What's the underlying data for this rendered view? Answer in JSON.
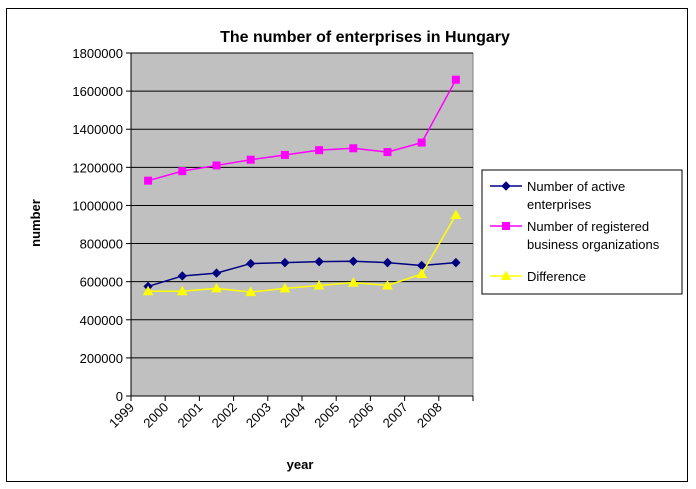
{
  "chart_data": {
    "type": "line",
    "title": "The number of enterprises in Hungary",
    "xlabel": "year",
    "ylabel": "number",
    "x_ticks": [
      "1999",
      "2000",
      "2001",
      "2002",
      "2003",
      "2004",
      "2005",
      "2006",
      "2007",
      "2008"
    ],
    "x": [
      "1999-2000",
      "2000-2001",
      "2001-2002",
      "2002-2003",
      "2003-2004",
      "2004-2005",
      "2005-2006",
      "2006-2007",
      "2007-2008",
      "2008-"
    ],
    "ylim": [
      0,
      1800000
    ],
    "y_ticks": [
      "0",
      "200000",
      "400000",
      "600000",
      "800000",
      "1000000",
      "1200000",
      "1400000",
      "1600000",
      "1800000"
    ],
    "grid": true,
    "legend_position": "right",
    "plot_background": "#c0c0c0",
    "series": [
      {
        "name": "Number of active enterprises",
        "name_lines": [
          "Number of active",
          "enterprises"
        ],
        "color": "#000080",
        "marker": "diamond",
        "values": [
          575000,
          630000,
          645000,
          695000,
          700000,
          705000,
          707000,
          700000,
          685000,
          700000
        ]
      },
      {
        "name": "Number of registered business organizations",
        "name_lines": [
          "Number of registered",
          "business organizations"
        ],
        "color": "#ff00ff",
        "marker": "square",
        "values": [
          1130000,
          1180000,
          1210000,
          1240000,
          1265000,
          1290000,
          1300000,
          1280000,
          1330000,
          1660000
        ]
      },
      {
        "name": "Difference",
        "name_lines": [
          "Difference"
        ],
        "color": "#ffff00",
        "marker": "triangle",
        "values": [
          550000,
          550000,
          565000,
          545000,
          565000,
          580000,
          595000,
          580000,
          640000,
          950000
        ]
      }
    ]
  }
}
